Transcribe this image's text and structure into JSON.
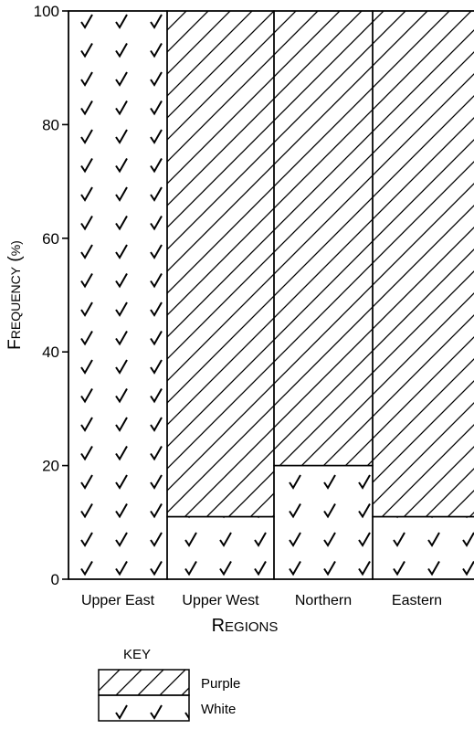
{
  "chart_data": {
    "type": "bar",
    "stacked": true,
    "percent_stacked": true,
    "categories": [
      "Upper East",
      "Upper West",
      "Northern",
      "Eastern"
    ],
    "series": [
      {
        "name": "White",
        "values": [
          100,
          11,
          20,
          11
        ],
        "pattern": "checkmarks"
      },
      {
        "name": "Purple",
        "values": [
          0,
          89,
          80,
          89
        ],
        "pattern": "diagonal-hatch"
      }
    ],
    "xlabel": "Regions",
    "ylabel": "Frequency (%)",
    "ylim": [
      0,
      100
    ],
    "yticks": [
      0,
      20,
      40,
      60,
      80,
      100
    ],
    "grid": false,
    "legend": {
      "title": "KEY",
      "position": "bottom-left",
      "entries": [
        "Purple",
        "White"
      ]
    }
  }
}
